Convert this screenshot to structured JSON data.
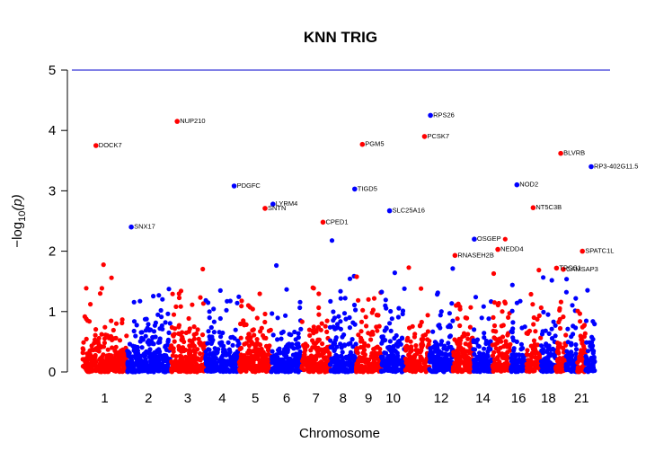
{
  "chart_data": {
    "type": "scatter",
    "title": "KNN TRIG",
    "xlabel": "Chromosome",
    "ylabel_main": "−log",
    "ylabel_sub": "10",
    "ylabel_arg": "(p)",
    "ylim": [
      0,
      5
    ],
    "yticks": [
      "0",
      "1",
      "2",
      "3",
      "4",
      "5"
    ],
    "threshold": 5,
    "threshold_color": "#0000cc",
    "colors": [
      "#ff0000",
      "#0000ff"
    ],
    "chromosomes": [
      1,
      2,
      3,
      4,
      5,
      6,
      7,
      8,
      9,
      10,
      11,
      12,
      13,
      14,
      15,
      16,
      17,
      18,
      19,
      20,
      21,
      22
    ],
    "chromosome_tick_labels": [
      {
        "chr": 1,
        "label": "1"
      },
      {
        "chr": 2,
        "label": "2"
      },
      {
        "chr": 3,
        "label": "3"
      },
      {
        "chr": 4,
        "label": "4"
      },
      {
        "chr": 5,
        "label": "5"
      },
      {
        "chr": 6,
        "label": "6"
      },
      {
        "chr": 7,
        "label": "7"
      },
      {
        "chr": 8,
        "label": "8"
      },
      {
        "chr": 9,
        "label": "9"
      },
      {
        "chr": 10,
        "label": "10"
      },
      {
        "chr": 12,
        "label": "12"
      },
      {
        "chr": 14,
        "label": "14"
      },
      {
        "chr": 16,
        "label": "16"
      },
      {
        "chr": 18,
        "label": "18"
      },
      {
        "chr": 21,
        "label": "21"
      }
    ],
    "top_hits": [
      {
        "gene": "DOCK7",
        "chr": 1,
        "pos": 0.3,
        "y": 3.75
      },
      {
        "gene": "SNX17",
        "chr": 2,
        "pos": 0.1,
        "y": 2.4
      },
      {
        "gene": "NUP210",
        "chr": 3,
        "pos": 0.2,
        "y": 4.15
      },
      {
        "gene": "PDGFC",
        "chr": 4,
        "pos": 0.85,
        "y": 3.08
      },
      {
        "gene": "LYRM4",
        "chr": 6,
        "pos": 0.05,
        "y": 2.78
      },
      {
        "gene": "SNTN",
        "chr": 5,
        "pos": 0.8,
        "y": 2.71
      },
      {
        "gene": "CPED1",
        "chr": 7,
        "pos": 0.75,
        "y": 2.48
      },
      {
        "gene": "TIGD5",
        "chr": 8,
        "pos": 0.95,
        "y": 3.03
      },
      {
        "gene": "PGM5",
        "chr": 9,
        "pos": 0.25,
        "y": 3.77
      },
      {
        "gene": "SLC25A16",
        "chr": 10,
        "pos": 0.35,
        "y": 2.67
      },
      {
        "gene": "RPS26",
        "chr": 12,
        "pos": 0.05,
        "y": 4.25
      },
      {
        "gene": "PCSK7",
        "chr": 11,
        "pos": 0.8,
        "y": 3.9
      },
      {
        "gene": "OSGEP",
        "chr": 14,
        "pos": 0.05,
        "y": 2.2
      },
      {
        "gene": "RNASEH2B",
        "chr": 13,
        "pos": 0.1,
        "y": 1.93
      },
      {
        "gene": "NEDD4",
        "chr": 15,
        "pos": 0.3,
        "y": 2.03
      },
      {
        "gene": "NOD2",
        "chr": 16,
        "pos": 0.4,
        "y": 3.1
      },
      {
        "gene": "NT5C3B",
        "chr": 17,
        "pos": 0.45,
        "y": 2.72
      },
      {
        "gene": "TPGS1",
        "chr": 19,
        "pos": 0.1,
        "y": 1.72
      },
      {
        "gene": "CAMSAP3",
        "chr": 19,
        "pos": 0.75,
        "y": 1.7
      },
      {
        "gene": "BLVRB",
        "chr": 19,
        "pos": 0.5,
        "y": 3.62
      },
      {
        "gene": "SPATC1L",
        "chr": 21,
        "pos": 0.6,
        "y": 2.0
      },
      {
        "gene": "RP3-402G11.5",
        "chr": 22,
        "pos": 0.6,
        "y": 3.4
      }
    ],
    "legend": "none",
    "grid": false
  }
}
